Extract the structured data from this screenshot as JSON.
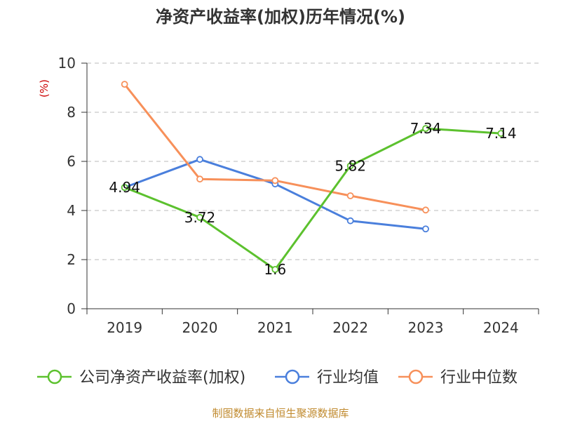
{
  "chart_data": {
    "type": "line",
    "title": "净资产收益率(加权)历年情况(%)",
    "ylabel": "(%)",
    "categories": [
      "2019",
      "2020",
      "2021",
      "2022",
      "2023",
      "2024"
    ],
    "ylim": [
      0,
      10
    ],
    "yticks": [
      0,
      2,
      4,
      6,
      8,
      10
    ],
    "grid": true,
    "legend_position": "bottom",
    "series": [
      {
        "name": "公司净资产收益率(加权)",
        "color": "#5cc12e",
        "values": [
          4.94,
          3.72,
          1.6,
          5.82,
          7.34,
          7.14
        ],
        "labels": [
          "4.94",
          "3.72",
          "1.6",
          "5.82",
          "7.34",
          "7.14"
        ]
      },
      {
        "name": "行业均值",
        "color": "#4a7fdc",
        "values": [
          4.94,
          6.08,
          5.08,
          3.58,
          3.25,
          null
        ]
      },
      {
        "name": "行业中位数",
        "color": "#f7905a",
        "values": [
          9.14,
          5.28,
          5.22,
          4.6,
          4.02,
          null
        ]
      }
    ],
    "source": "制图数据来自恒生聚源数据库"
  }
}
